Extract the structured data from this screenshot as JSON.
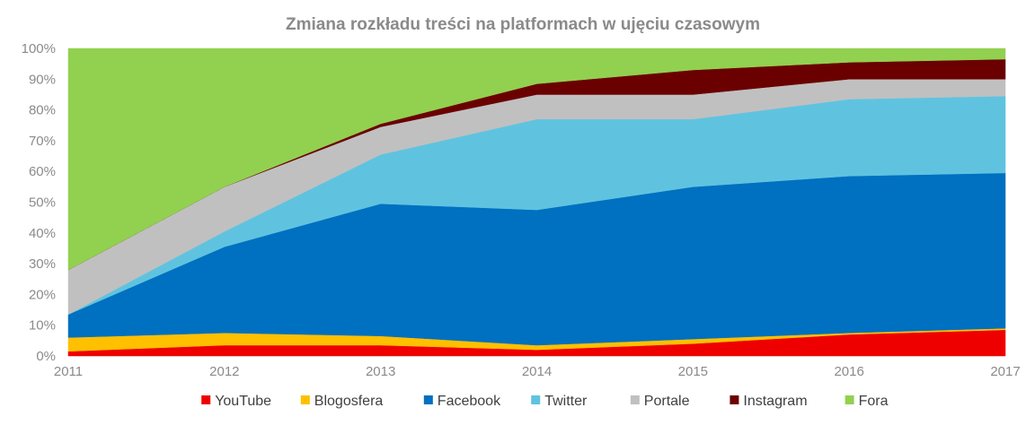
{
  "chart_data": {
    "type": "area",
    "stacked": true,
    "title": "Zmiana rozkładu treści na platformach w ujęciu czasowym",
    "xlabel": "",
    "ylabel": "",
    "x": [
      "2011",
      "2012",
      "2013",
      "2014",
      "2015",
      "2016",
      "2017"
    ],
    "ylim": [
      0,
      100
    ],
    "yticks": [
      "0%",
      "10%",
      "20%",
      "30%",
      "40%",
      "50%",
      "60%",
      "70%",
      "80%",
      "90%",
      "100%"
    ],
    "ytick_values": [
      0,
      10,
      20,
      30,
      40,
      50,
      60,
      70,
      80,
      90,
      100
    ],
    "grid": false,
    "legend_position": "bottom",
    "series": [
      {
        "name": "YouTube",
        "color": "#ee0000",
        "values": [
          1.5,
          3.5,
          3.5,
          2.0,
          4.0,
          7.0,
          8.5
        ]
      },
      {
        "name": "Blogosfera",
        "color": "#ffc000",
        "values": [
          4.5,
          4.0,
          3.0,
          1.5,
          1.5,
          0.5,
          0.5
        ]
      },
      {
        "name": "Facebook",
        "color": "#0070c0",
        "values": [
          7.5,
          28.0,
          43.0,
          44.0,
          49.5,
          51.0,
          50.5
        ]
      },
      {
        "name": "Twitter",
        "color": "#5fc3e0",
        "values": [
          0.0,
          5.0,
          16.0,
          29.5,
          22.0,
          25.0,
          25.0
        ]
      },
      {
        "name": "Portale",
        "color": "#c0c0c0",
        "values": [
          14.5,
          14.5,
          9.0,
          8.0,
          8.0,
          6.5,
          5.5
        ]
      },
      {
        "name": "Instagram",
        "color": "#6b0000",
        "values": [
          0.0,
          0.0,
          1.0,
          3.5,
          8.0,
          5.5,
          6.5
        ]
      },
      {
        "name": "Fora",
        "color": "#92d050",
        "values": [
          72.0,
          45.0,
          24.5,
          11.5,
          7.0,
          4.5,
          3.5
        ]
      }
    ]
  }
}
